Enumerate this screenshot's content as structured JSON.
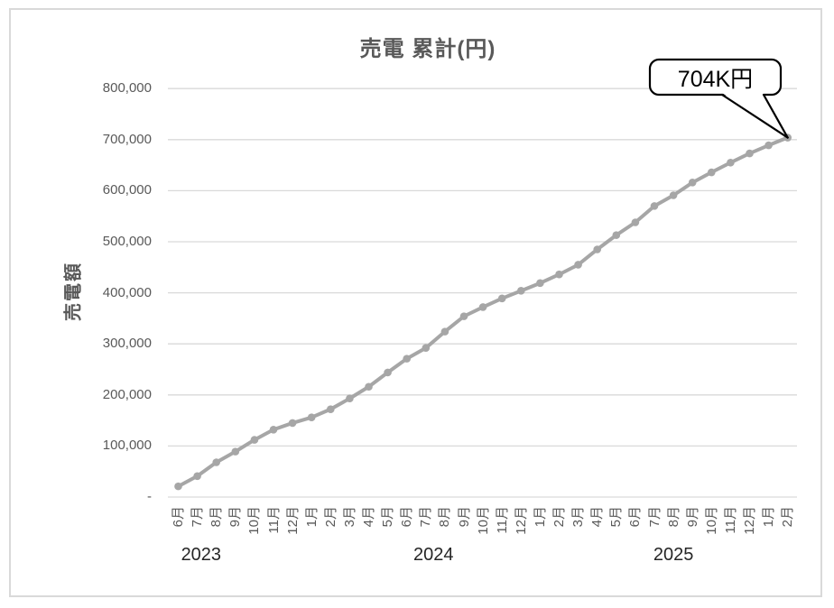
{
  "chart_data": {
    "type": "line",
    "title": "売電 累計(円)",
    "ylabel": "売電額",
    "legend": "none",
    "grid": "horizontal",
    "ylim": [
      0,
      800000
    ],
    "yticks": [
      {
        "label": "800,000",
        "value": 800000
      },
      {
        "label": "700,000",
        "value": 700000
      },
      {
        "label": "600,000",
        "value": 600000
      },
      {
        "label": "500,000",
        "value": 500000
      },
      {
        "label": "400,000",
        "value": 400000
      },
      {
        "label": "300,000",
        "value": 300000
      },
      {
        "label": "200,000",
        "value": 200000
      },
      {
        "label": "100,000",
        "value": 100000
      },
      {
        "label": "-",
        "value": 0
      }
    ],
    "categories": [
      "6月",
      "7月",
      "8月",
      "9月",
      "10月",
      "11月",
      "12月",
      "1月",
      "2月",
      "3月",
      "4月",
      "5月",
      "6月",
      "7月",
      "8月",
      "9月",
      "10月",
      "11月",
      "12月",
      "1月",
      "2月",
      "3月",
      "4月",
      "5月",
      "6月",
      "7月",
      "8月",
      "9月",
      "10月",
      "11月",
      "12月",
      "1月",
      "2月"
    ],
    "year_labels": [
      {
        "label": "2023",
        "position": 1.2
      },
      {
        "label": "2024",
        "position": 13.4
      },
      {
        "label": "2025",
        "position": 26.0
      }
    ],
    "values": [
      21000,
      41000,
      68000,
      89000,
      112000,
      132000,
      145000,
      156000,
      172000,
      193000,
      216000,
      244000,
      271000,
      292000,
      324000,
      354000,
      372000,
      389000,
      404000,
      419000,
      436000,
      455000,
      485000,
      513000,
      538000,
      570000,
      591000,
      616000,
      636000,
      655000,
      673000,
      689000,
      704000
    ],
    "callout": {
      "label": "704K円",
      "points_to_last_value": true
    },
    "colors": {
      "line": "#a6a6a6",
      "marker": "#a6a6a6",
      "grid": "#d9d9d9",
      "axis": "#d9d9d9",
      "text": "#595959",
      "year_text": "#262626",
      "callout_border": "#000000",
      "callout_fill": "#ffffff"
    }
  }
}
